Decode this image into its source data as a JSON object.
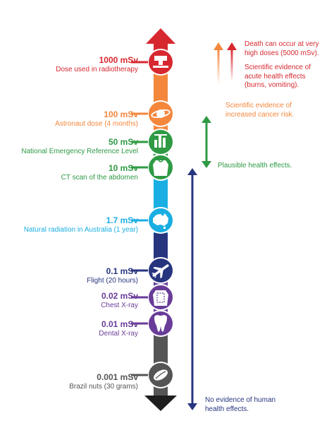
{
  "scale": {
    "colors": {
      "red": "#d7282f",
      "orange": "#f4873c",
      "green": "#2e9a44",
      "cyan": "#1aaee2",
      "navy": "#27357f",
      "purple": "#683c98",
      "gray": "#555555",
      "black": "#1e1e1e"
    },
    "levels": [
      {
        "value": "1000 mSv",
        "label": "Dose used in radiotherapy",
        "color": "#d7282f",
        "icon": "radiotherapy-machine-icon"
      },
      {
        "value": "100 mSv",
        "label": "Astronaut dose (4 months)",
        "color": "#f4873c",
        "icon": "planet-ring-icon"
      },
      {
        "value": "50 mSv",
        "label": "National Emergency Reference Level",
        "color": "#2e9a44",
        "icon": "bar-chart-icon"
      },
      {
        "value": "10 mSv",
        "label": "CT scan of the abdomen",
        "color": "#2e9a44",
        "icon": "torso-icon"
      },
      {
        "value": "1.7 mSv",
        "label": "Natural radiation in Australia (1 year)",
        "color": "#1aaee2",
        "icon": "australia-map-icon"
      },
      {
        "value": "0.1 mSv",
        "label": "Flight (20 hours)",
        "color": "#27357f",
        "icon": "airplane-icon"
      },
      {
        "value": "0.02 mSv",
        "label": "Chest X-ray",
        "color": "#683c98",
        "icon": "chest-xray-icon"
      },
      {
        "value": "0.01 mSv",
        "label": "Dental X-ray",
        "color": "#683c98",
        "icon": "tooth-icon"
      },
      {
        "value": "0.001 mSv",
        "label": "Brazil nuts (30 grams)",
        "color": "#555555",
        "icon": "brazil-nut-icon"
      }
    ]
  },
  "effects": [
    {
      "lines": [
        "Death can occur at very",
        "high doses (5000 mSv)."
      ],
      "color": "#d7282f"
    },
    {
      "lines": [
        "Scientific evidence of",
        "acute health effects",
        "(burns, vomiting)."
      ],
      "color": "#d7282f"
    },
    {
      "lines": [
        "Scientific evidence of",
        "increased cancer risk."
      ],
      "color": "#f4873c"
    },
    {
      "lines": [
        "Plausible health effects."
      ],
      "color": "#2e9a44"
    },
    {
      "lines": [
        "No evidence of human",
        "health effects."
      ],
      "color": "#27357f"
    }
  ]
}
